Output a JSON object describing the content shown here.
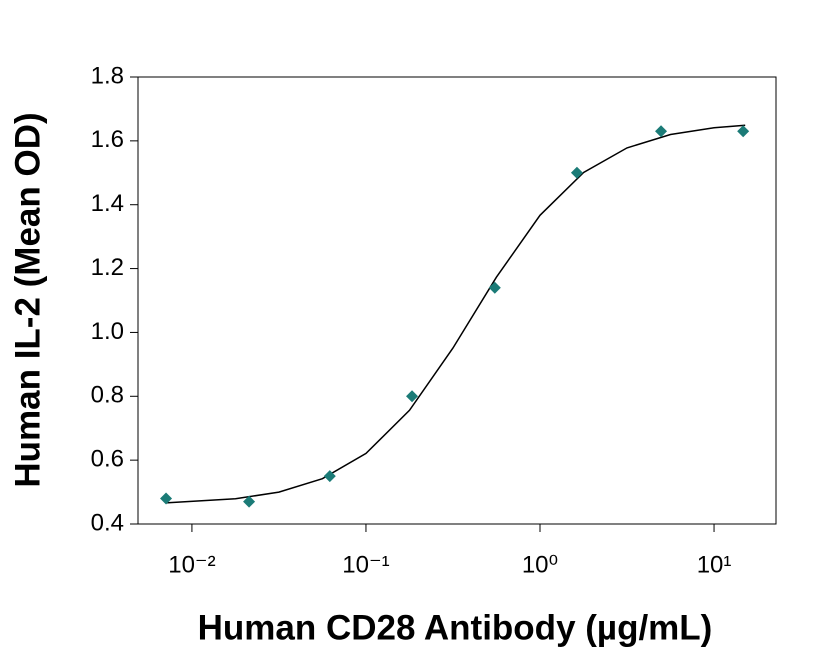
{
  "chart_data": {
    "type": "scatter",
    "x_label": "Human CD28 Antibody (µg/mL)",
    "y_label": "Human IL-2 (Mean OD)",
    "xscale": "log",
    "xlim": [
      0.0049,
      22.7
    ],
    "xticks": [
      {
        "value": 0.01,
        "label": "10⁻²"
      },
      {
        "value": 0.1,
        "label": "10⁻¹"
      },
      {
        "value": 1,
        "label": "10⁰"
      },
      {
        "value": 10,
        "label": "10¹"
      }
    ],
    "ylim": [
      0.4,
      1.8
    ],
    "yticks": [
      0.4,
      0.6,
      0.8,
      {
        "value": 1,
        "label": "1.0"
      },
      1.2,
      1.4,
      1.6,
      1.8
    ],
    "series": [
      {
        "color": "#1b7b77",
        "x": [
          0.0071,
          0.0213,
          0.062,
          0.184,
          0.55,
          1.63,
          4.96,
          14.7
        ],
        "values": [
          0.48,
          0.47,
          0.55,
          0.8,
          1.14,
          1.5,
          1.63,
          1.63
        ]
      }
    ],
    "curve": {
      "color": "#000000",
      "x": [
        0.00708,
        0.0178,
        0.0316,
        0.0562,
        0.1,
        0.178,
        0.316,
        0.562,
        1,
        1.78,
        3.16,
        5.62,
        10,
        15.1
      ],
      "values": [
        0.466,
        0.479,
        0.5,
        0.542,
        0.621,
        0.756,
        0.951,
        1.173,
        1.367,
        1.501,
        1.578,
        1.62,
        1.641,
        1.649
      ]
    }
  }
}
